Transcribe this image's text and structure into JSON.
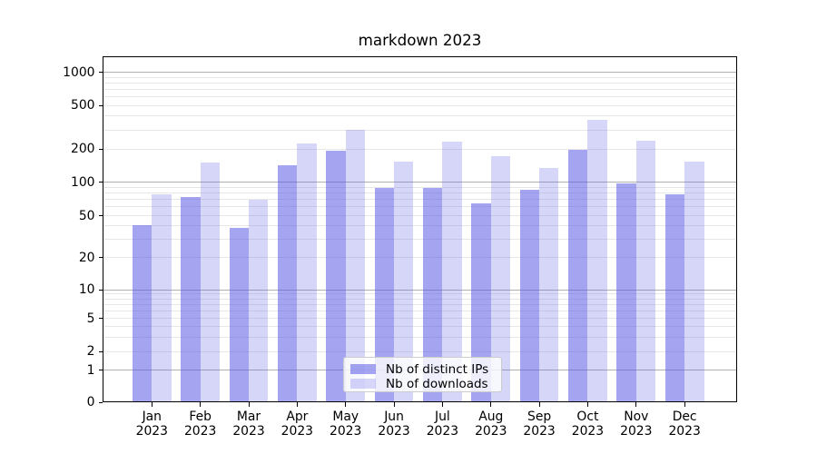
{
  "title": "markdown 2023",
  "chart_data": {
    "type": "bar",
    "title": "markdown 2023",
    "categories": [
      "Jan 2023",
      "Feb 2023",
      "Mar 2023",
      "Apr 2023",
      "May 2023",
      "Jun 2023",
      "Jul 2023",
      "Aug 2023",
      "Sep 2023",
      "Oct 2023",
      "Nov 2023",
      "Dec 2023"
    ],
    "series": [
      {
        "name": "Nb of distinct IPs",
        "values": [
          41,
          73,
          38,
          143,
          195,
          88,
          89,
          64,
          85,
          197,
          97,
          77
        ]
      },
      {
        "name": "Nb of downloads",
        "values": [
          78,
          150,
          70,
          224,
          298,
          155,
          234,
          174,
          135,
          368,
          237,
          153
        ]
      }
    ],
    "xlabel": "",
    "ylabel": "",
    "yscale": "symlog",
    "yticks": [
      0,
      1,
      2,
      5,
      10,
      20,
      50,
      100,
      200,
      500,
      1000
    ],
    "ylim": [
      0,
      1400
    ],
    "grid": true,
    "legend_position": "lower center"
  },
  "legend": {
    "items": [
      {
        "label": "Nb of distinct IPs",
        "swatch": "dark"
      },
      {
        "label": "Nb of downloads",
        "swatch": "light"
      }
    ]
  },
  "colors": {
    "bar_base": "#5a5ae6",
    "bar_dark_alpha": 0.55,
    "bar_light_alpha": 0.25,
    "grid_major": "#b0b0b0",
    "grid_minor": "#e7e7e7",
    "spine": "#000000",
    "text": "#000000",
    "legend_border": "#cccccc",
    "legend_bg_rgba": "rgba(255,255,255,0.8)"
  }
}
